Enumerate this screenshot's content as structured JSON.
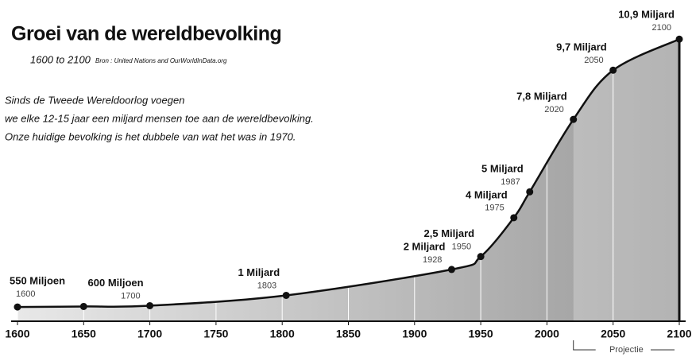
{
  "chart_data": {
    "type": "area",
    "title": "Groei van de wereldbevolking",
    "subtitle": "1600 to 2100",
    "source": "Bron : United Nations and OurWorldInData.org",
    "annotation": [
      "Sinds de Tweede Wereldoorlog voegen",
      "we elke 12-15 jaar een miljard mensen toe aan de wereldbevolking.",
      "Onze huidige bevolking is het dubbele van wat het was in 1970."
    ],
    "x": [
      1600,
      1650,
      1700,
      1803,
      1928,
      1950,
      1975,
      1987,
      2020,
      2050,
      2100
    ],
    "values": [
      0.55,
      0.57,
      0.6,
      1,
      2,
      2.5,
      4,
      5,
      7.8,
      9.7,
      10.9
    ],
    "value_labels": [
      "550 Miljoen",
      null,
      "600 Miljoen",
      "1 Miljard",
      "2 Miljard",
      "2,5 Miljard",
      "4 Miljard",
      "5 Miljard",
      "7,8 Miljard",
      "9,7 Miljard",
      "10,9 Miljard"
    ],
    "xlim": [
      1600,
      2100
    ],
    "xticks": [
      1600,
      1650,
      1700,
      1750,
      1800,
      1850,
      1900,
      1950,
      2000,
      2050,
      2100
    ],
    "ylim": [
      0,
      11
    ],
    "projection_start": 2020,
    "projection_label": "Projectie",
    "color": "#111111",
    "grid": true
  }
}
